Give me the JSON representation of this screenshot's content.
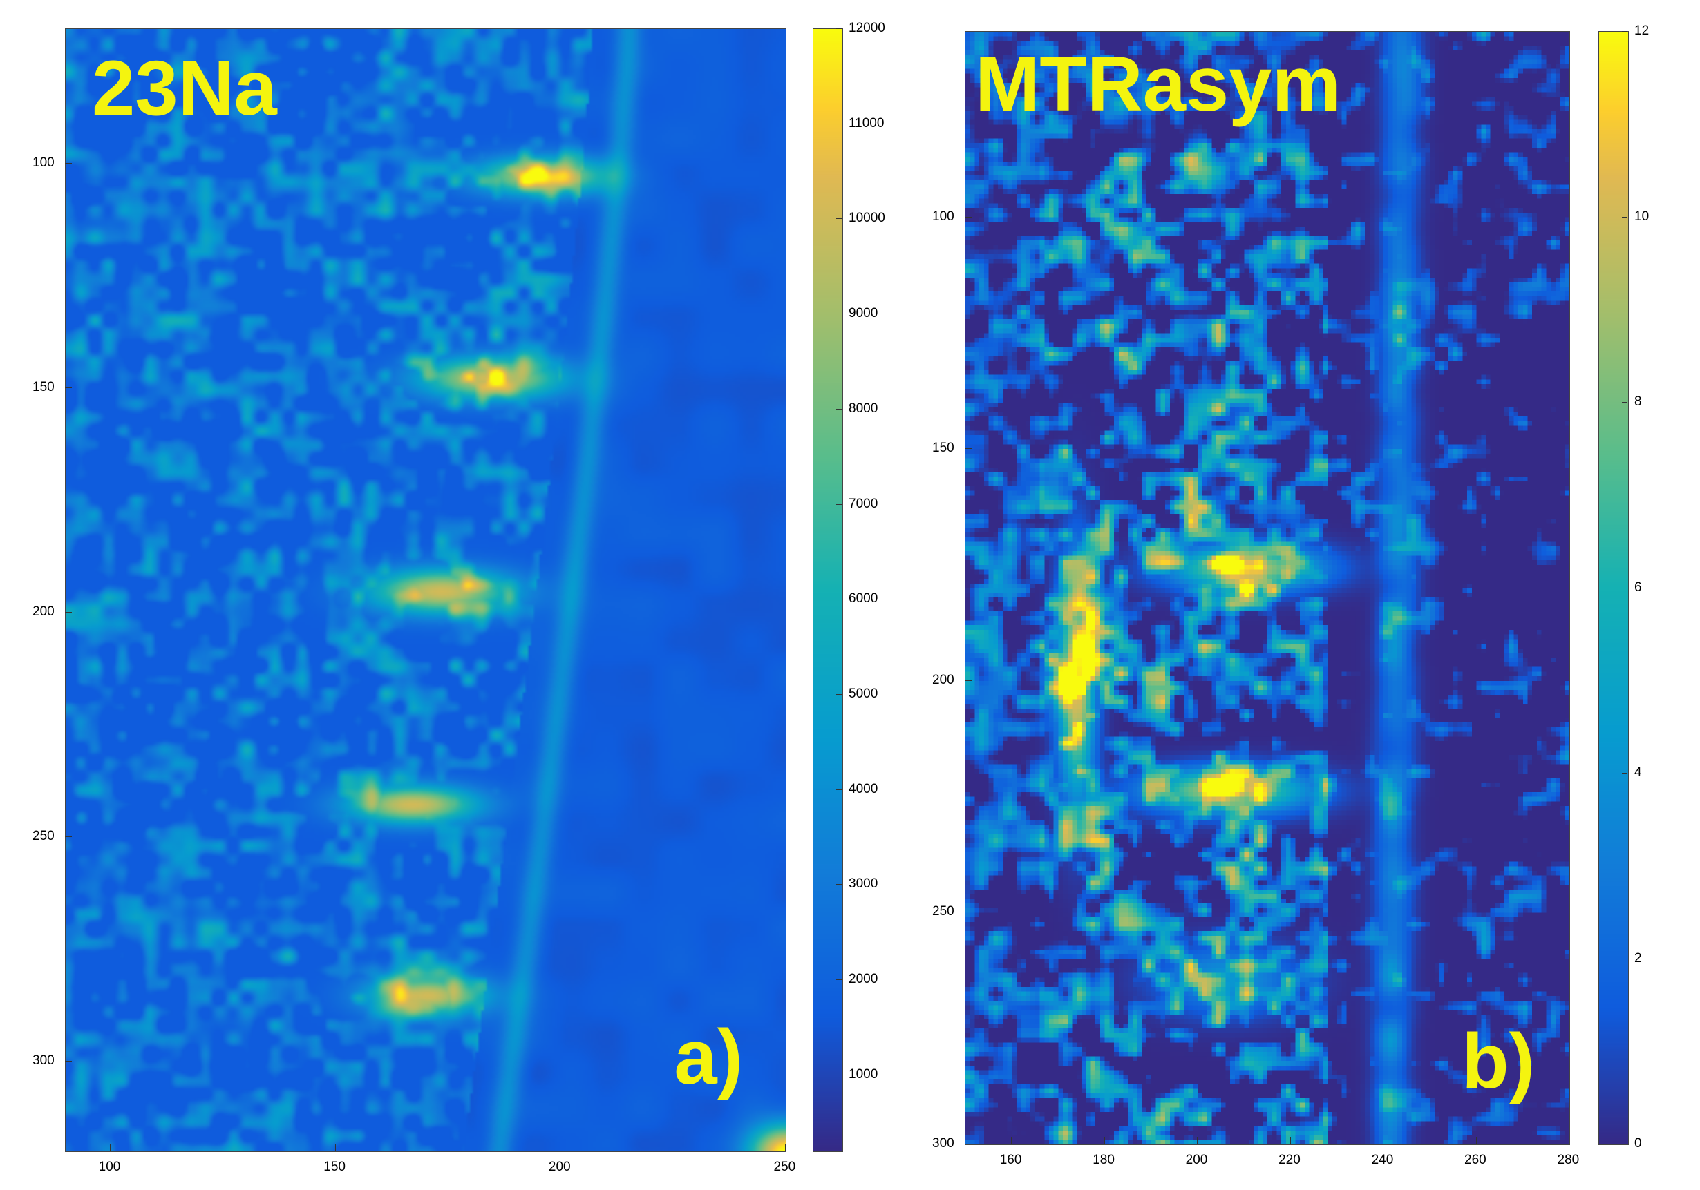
{
  "panels": [
    {
      "id": "a",
      "title": "23Na",
      "corner_label": "a)",
      "x_ticks": [
        "100",
        "150",
        "200",
        "250"
      ],
      "x_tick_values": [
        100,
        150,
        200,
        250
      ],
      "x_range": [
        90,
        250
      ],
      "y_ticks": [
        "100",
        "150",
        "200",
        "250",
        "300"
      ],
      "y_tick_values": [
        100,
        150,
        200,
        250,
        300
      ],
      "y_range": [
        70,
        320
      ],
      "colorbar_ticks": [
        "12000",
        "11000",
        "10000",
        "9000",
        "8000",
        "7000",
        "6000",
        "5000",
        "4000",
        "3000",
        "2000",
        "1000"
      ],
      "colorbar_values": [
        12000,
        11000,
        10000,
        9000,
        8000,
        7000,
        6000,
        5000,
        4000,
        3000,
        2000,
        1000
      ],
      "colorbar_range": [
        200,
        12000
      ],
      "colormap": "parula"
    },
    {
      "id": "b",
      "title": "MTRasym",
      "corner_label": "b)",
      "x_ticks": [
        "160",
        "180",
        "200",
        "220",
        "240",
        "260",
        "280"
      ],
      "x_tick_values": [
        160,
        180,
        200,
        220,
        240,
        260,
        280
      ],
      "x_range": [
        150,
        280
      ],
      "y_ticks": [
        "100",
        "150",
        "200",
        "250",
        "300"
      ],
      "y_tick_values": [
        100,
        150,
        200,
        250,
        300
      ],
      "y_range": [
        60,
        300
      ],
      "colorbar_ticks": [
        "12",
        "10",
        "8",
        "6",
        "4",
        "2",
        "0"
      ],
      "colorbar_values": [
        12,
        10,
        8,
        6,
        4,
        2,
        0
      ],
      "colorbar_range": [
        0,
        12
      ],
      "colormap": "parula"
    }
  ],
  "colors": {
    "label_yellow": "#f4f40f",
    "parula_low": "#352a87",
    "parula_high": "#f9fb0e"
  }
}
